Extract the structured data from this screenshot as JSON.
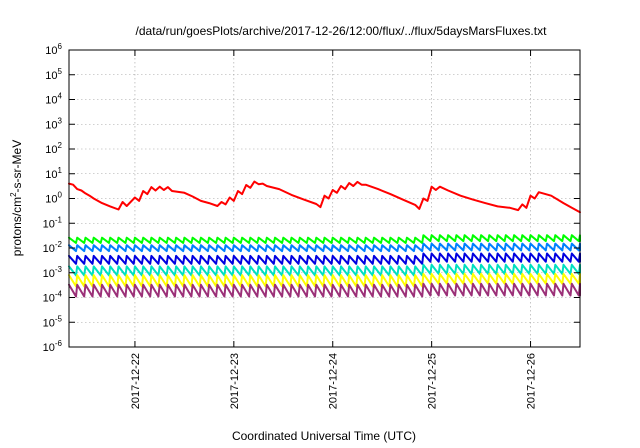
{
  "chart_data": {
    "type": "line",
    "title": "/data/run/goesPlots/archive/2017-12-26/12:00/flux/../flux/5daysMarsFluxes.txt",
    "xlabel": "Coordinated Universal Time (UTC)",
    "ylabel": {
      "base": "protons/cm",
      "sup": "2",
      "rest": "-s-sr-MeV"
    },
    "yscale": "log",
    "ylim": [
      1e-06,
      1000000.0
    ],
    "xlim": [
      "2017-12-21T08:00",
      "2017-12-26T12:00"
    ],
    "grid": true,
    "y_ticks": [
      {
        "base": "10",
        "exp": "-6",
        "value": 1e-06
      },
      {
        "base": "10",
        "exp": "-5",
        "value": 1e-05
      },
      {
        "base": "10",
        "exp": "-4",
        "value": 0.0001
      },
      {
        "base": "10",
        "exp": "-3",
        "value": 0.001
      },
      {
        "base": "10",
        "exp": "-2",
        "value": 0.01
      },
      {
        "base": "10",
        "exp": "-1",
        "value": 0.1
      },
      {
        "base": "10",
        "exp": "0",
        "value": 1.0
      },
      {
        "base": "10",
        "exp": "1",
        "value": 10.0
      },
      {
        "base": "10",
        "exp": "2",
        "value": 100.0
      },
      {
        "base": "10",
        "exp": "3",
        "value": 1000.0
      },
      {
        "base": "10",
        "exp": "4",
        "value": 10000.0
      },
      {
        "base": "10",
        "exp": "5",
        "value": 100000.0
      },
      {
        "base": "10",
        "exp": "6",
        "value": 1000000.0
      }
    ],
    "x_ticks": [
      {
        "label": "2017-12-22",
        "value": "2017-12-22T00:00"
      },
      {
        "label": "2017-12-23",
        "value": "2017-12-23T00:00"
      },
      {
        "label": "2017-12-24",
        "value": "2017-12-24T00:00"
      },
      {
        "label": "2017-12-25",
        "value": "2017-12-25T00:00"
      },
      {
        "label": "2017-12-26",
        "value": "2017-12-26T00:00"
      }
    ],
    "series": [
      {
        "color": "#ff0000",
        "width": 2,
        "points": [
          [
            "2017-12-21T08:00",
            4.0
          ],
          [
            "2017-12-21T09:00",
            3.6
          ],
          [
            "2017-12-21T10:00",
            2.4
          ],
          [
            "2017-12-21T11:00",
            2.1
          ],
          [
            "2017-12-21T12:00",
            1.6
          ],
          [
            "2017-12-21T13:00",
            1.3
          ],
          [
            "2017-12-21T14:00",
            1.0
          ],
          [
            "2017-12-21T16:00",
            0.65
          ],
          [
            "2017-12-21T18:00",
            0.48
          ],
          [
            "2017-12-21T20:00",
            0.36
          ],
          [
            "2017-12-21T21:00",
            0.72
          ],
          [
            "2017-12-21T22:00",
            0.5
          ],
          [
            "2017-12-22T00:00",
            1.1
          ],
          [
            "2017-12-22T01:00",
            0.8
          ],
          [
            "2017-12-22T02:00",
            2.0
          ],
          [
            "2017-12-22T03:00",
            1.5
          ],
          [
            "2017-12-22T04:00",
            2.9
          ],
          [
            "2017-12-22T05:00",
            2.1
          ],
          [
            "2017-12-22T06:00",
            3.0
          ],
          [
            "2017-12-22T07:00",
            2.2
          ],
          [
            "2017-12-22T08:00",
            2.9
          ],
          [
            "2017-12-22T09:00",
            2.0
          ],
          [
            "2017-12-22T12:00",
            1.7
          ],
          [
            "2017-12-22T14:00",
            1.2
          ],
          [
            "2017-12-22T16:00",
            0.8
          ],
          [
            "2017-12-22T18:00",
            0.65
          ],
          [
            "2017-12-22T20:00",
            0.5
          ],
          [
            "2017-12-22T21:00",
            0.72
          ],
          [
            "2017-12-22T22:00",
            0.58
          ],
          [
            "2017-12-22T23:00",
            1.1
          ],
          [
            "2017-12-23T00:00",
            0.8
          ],
          [
            "2017-12-23T01:00",
            2.0
          ],
          [
            "2017-12-23T02:00",
            1.5
          ],
          [
            "2017-12-23T03:00",
            3.5
          ],
          [
            "2017-12-23T04:00",
            2.7
          ],
          [
            "2017-12-23T05:00",
            4.8
          ],
          [
            "2017-12-23T06:00",
            3.8
          ],
          [
            "2017-12-23T07:00",
            4.0
          ],
          [
            "2017-12-23T08:00",
            3.2
          ],
          [
            "2017-12-23T11:00",
            2.4
          ],
          [
            "2017-12-23T14:00",
            1.4
          ],
          [
            "2017-12-23T17:00",
            0.9
          ],
          [
            "2017-12-23T20:00",
            0.6
          ],
          [
            "2017-12-23T21:00",
            0.45
          ],
          [
            "2017-12-23T22:00",
            1.3
          ],
          [
            "2017-12-23T23:00",
            1.0
          ],
          [
            "2017-12-24T00:00",
            2.2
          ],
          [
            "2017-12-24T01:00",
            1.7
          ],
          [
            "2017-12-24T02:00",
            3.2
          ],
          [
            "2017-12-24T03:00",
            2.4
          ],
          [
            "2017-12-24T04:00",
            4.2
          ],
          [
            "2017-12-24T05:00",
            3.2
          ],
          [
            "2017-12-24T06:00",
            4.7
          ],
          [
            "2017-12-24T07:00",
            3.6
          ],
          [
            "2017-12-24T08:00",
            3.6
          ],
          [
            "2017-12-24T11:00",
            2.4
          ],
          [
            "2017-12-24T14:00",
            1.5
          ],
          [
            "2017-12-24T17:00",
            0.9
          ],
          [
            "2017-12-24T20:00",
            0.55
          ],
          [
            "2017-12-24T21:00",
            0.38
          ],
          [
            "2017-12-24T22:00",
            1.0
          ],
          [
            "2017-12-24T23:00",
            0.8
          ],
          [
            "2017-12-25T00:00",
            3.0
          ],
          [
            "2017-12-25T01:00",
            2.2
          ],
          [
            "2017-12-25T02:00",
            3.0
          ],
          [
            "2017-12-25T04:00",
            2.1
          ],
          [
            "2017-12-25T07:00",
            1.3
          ],
          [
            "2017-12-25T10:00",
            0.9
          ],
          [
            "2017-12-25T13:00",
            0.65
          ],
          [
            "2017-12-25T16:00",
            0.48
          ],
          [
            "2017-12-25T19:00",
            0.42
          ],
          [
            "2017-12-25T21:00",
            0.34
          ],
          [
            "2017-12-25T22:00",
            0.58
          ],
          [
            "2017-12-25T23:00",
            0.42
          ],
          [
            "2017-12-26T00:00",
            1.3
          ],
          [
            "2017-12-26T01:00",
            1.0
          ],
          [
            "2017-12-26T02:00",
            1.8
          ],
          [
            "2017-12-26T05:00",
            1.3
          ],
          [
            "2017-12-26T08:00",
            0.65
          ],
          [
            "2017-12-26T10:00",
            0.42
          ],
          [
            "2017-12-26T12:00",
            0.28
          ]
        ]
      },
      {
        "color": "#00ff00",
        "width": 2,
        "sawtooth": {
          "start": "2017-12-21T08:00",
          "end": "2017-12-26T12:00",
          "period_hours": 2,
          "low": 0.016,
          "high": 0.026,
          "late_low": 0.019,
          "late_high": 0.033
        }
      },
      {
        "color": "#0080ff",
        "width": 2,
        "sawtooth": {
          "start": "2017-12-21T08:00",
          "end": "2017-12-26T12:00",
          "period_hours": 2,
          "low": 0.0075,
          "high": 0.013,
          "late_low": 0.008,
          "late_high": 0.015
        }
      },
      {
        "color": "#0000e0",
        "width": 2,
        "sawtooth": {
          "start": "2017-12-21T08:00",
          "end": "2017-12-26T12:00",
          "period_hours": 2,
          "low": 0.0023,
          "high": 0.0048,
          "late_low": 0.0028,
          "late_high": 0.006
        }
      },
      {
        "color": "#00e0c0",
        "width": 2,
        "sawtooth": {
          "start": "2017-12-21T08:00",
          "end": "2017-12-26T12:00",
          "period_hours": 2,
          "low": 0.00078,
          "high": 0.0018,
          "late_low": 0.0009,
          "late_high": 0.0021
        }
      },
      {
        "color": "#ffff00",
        "width": 2,
        "sawtooth": {
          "start": "2017-12-21T08:00",
          "end": "2017-12-26T12:00",
          "period_hours": 2,
          "low": 0.00028,
          "high": 0.0008,
          "late_low": 0.00036,
          "late_high": 0.0009
        }
      },
      {
        "color": "#9b3078",
        "width": 2,
        "sawtooth": {
          "start": "2017-12-21T08:00",
          "end": "2017-12-26T12:00",
          "period_hours": 2,
          "low": 0.00011,
          "high": 0.00033,
          "late_low": 0.00012,
          "late_high": 0.00036
        }
      }
    ]
  }
}
